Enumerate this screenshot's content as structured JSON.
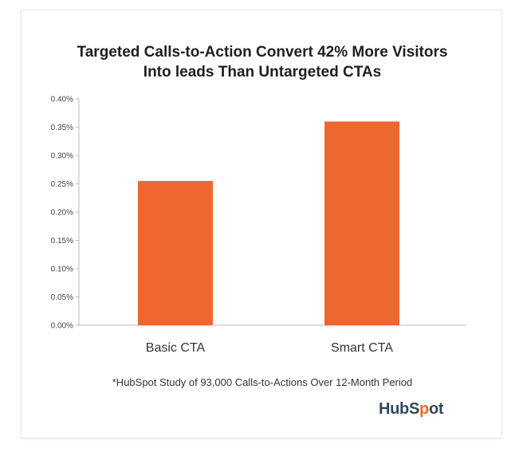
{
  "chart_data": {
    "type": "bar",
    "title_lines": [
      "Targeted Calls-to-Action Convert 42% More Visitors",
      "Into leads Than Untargeted CTAs"
    ],
    "categories": [
      "Basic CTA",
      "Smart CTA"
    ],
    "values": [
      0.255,
      0.36
    ],
    "y_ticks": [
      "0.00%",
      "0.05%",
      "0.10%",
      "0.15%",
      "0.20%",
      "0.25%",
      "0.30%",
      "0.35%",
      "0.40%"
    ],
    "ylim": [
      0,
      0.4
    ],
    "y_unit": "%",
    "grid": false,
    "legend": "none",
    "bar_color": "#ee6730"
  },
  "footnote": "*HubSpot Study of 93,000 Calls-to-Actions Over 12-Month Period",
  "logo": {
    "text_pre": "HubS",
    "text_mark": "p",
    "text_post": "ot",
    "brand_color": "#33475b",
    "accent_color": "#f26b2a"
  }
}
